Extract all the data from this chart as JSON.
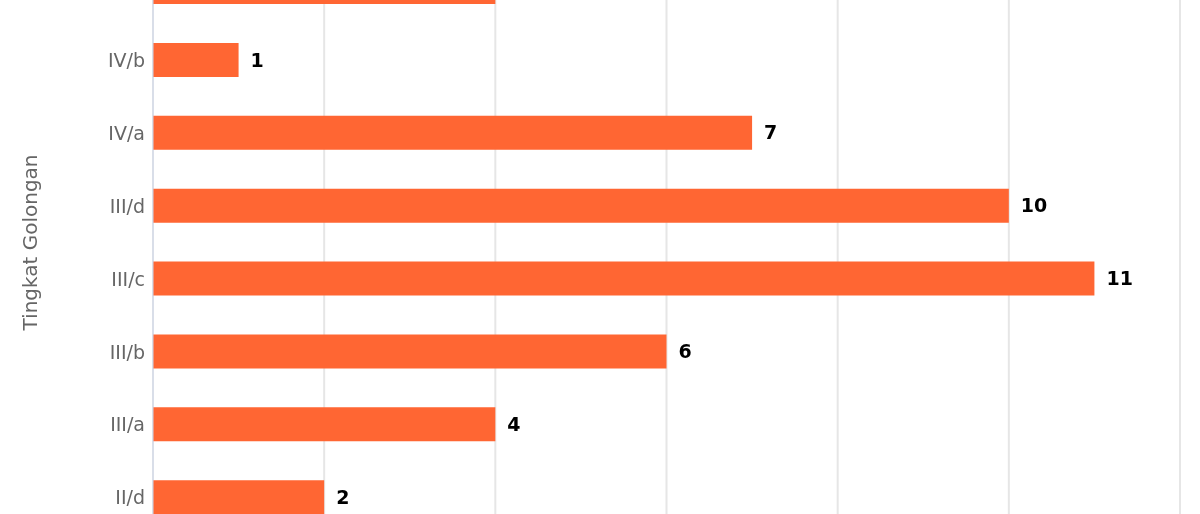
{
  "chart_data": {
    "type": "bar",
    "orientation": "horizontal",
    "ylabel": "Tingkat Golongan",
    "categories": [
      null,
      "IV/b",
      "IV/a",
      "III/d",
      "III/c",
      "III/b",
      "III/a",
      "II/d"
    ],
    "values": [
      4,
      1,
      7,
      10,
      11,
      6,
      4,
      2
    ],
    "value_labels": [
      null,
      "1",
      "7",
      "10",
      "11",
      "6",
      "4",
      "2"
    ],
    "color": "#ff6633",
    "grid": "x",
    "tick_labels": "y",
    "legend": false
  }
}
